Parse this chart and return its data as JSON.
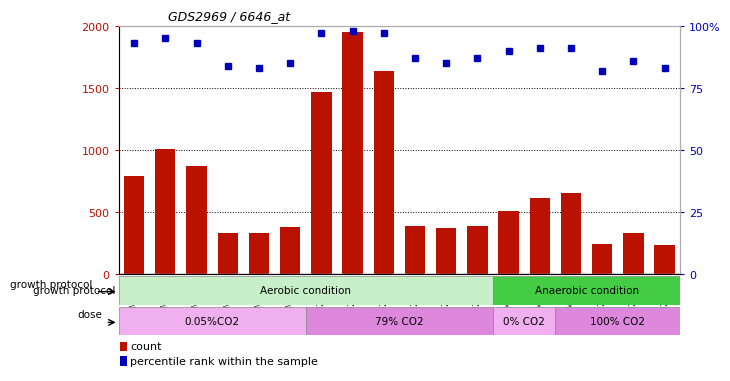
{
  "title": "GDS2969 / 6646_at",
  "samples": [
    "GSM29912",
    "GSM29914",
    "GSM29917",
    "GSM29920",
    "GSM29921",
    "GSM29922",
    "GSM225515",
    "GSM225516",
    "GSM225517",
    "GSM225519",
    "GSM225520",
    "GSM225521",
    "GSM29934",
    "GSM29936",
    "GSM29937",
    "GSM225469",
    "GSM225482",
    "GSM225514"
  ],
  "counts": [
    790,
    1010,
    870,
    330,
    330,
    380,
    1470,
    1950,
    1640,
    390,
    370,
    390,
    510,
    610,
    650,
    240,
    330,
    230
  ],
  "percentiles": [
    93,
    95,
    93,
    84,
    83,
    85,
    97,
    98,
    97,
    87,
    85,
    87,
    90,
    91,
    91,
    82,
    86,
    83
  ],
  "ylim_left": [
    0,
    2000
  ],
  "ylim_right": [
    0,
    100
  ],
  "yticks_left": [
    0,
    500,
    1000,
    1500,
    2000
  ],
  "yticks_right": [
    0,
    25,
    50,
    75,
    100
  ],
  "ytick_right_labels": [
    "0",
    "25",
    "50",
    "75",
    "100%"
  ],
  "bar_color": "#bb1100",
  "dot_color": "#0000bb",
  "growth_protocol_label": "growth protocol",
  "dose_label": "dose",
  "aerobic_color": "#c8f0c8",
  "anaerobic_color": "#44cc44",
  "aerobic_label": "Aerobic condition",
  "anaerobic_label": "Anaerobic condition",
  "aerobic_samples": 12,
  "dose_specs": [
    {
      "label": "0.05%CO2",
      "color": "#f0b0f0",
      "start": 0,
      "end": 6
    },
    {
      "label": "79% CO2",
      "color": "#dd88dd",
      "start": 6,
      "end": 12
    },
    {
      "label": "0% CO2",
      "color": "#f0b0f0",
      "start": 12,
      "end": 14
    },
    {
      "label": "100% CO2",
      "color": "#dd88dd",
      "start": 14,
      "end": 18
    }
  ],
  "legend_count_label": "count",
  "legend_percentile_label": "percentile rank within the sample"
}
